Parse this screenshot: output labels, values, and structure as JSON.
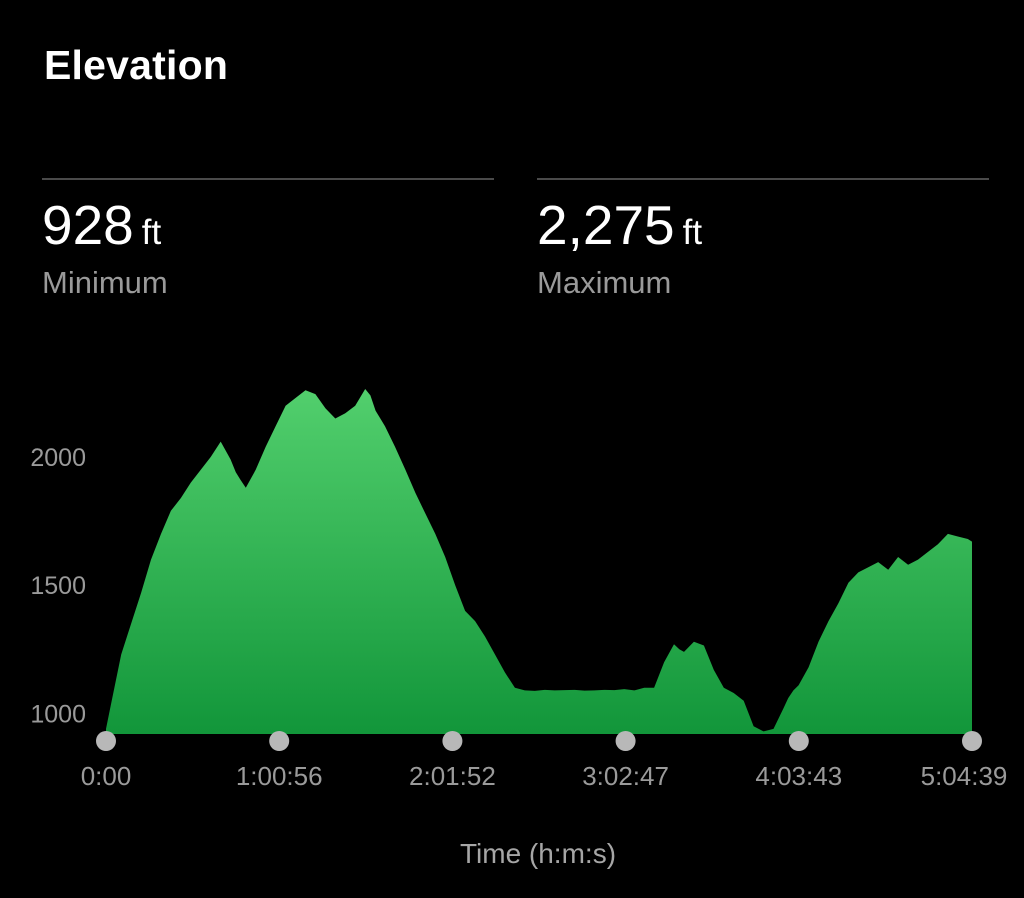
{
  "header": {
    "title": "Elevation"
  },
  "stats": [
    {
      "value": "928",
      "unit": "ft",
      "label": "Minimum"
    },
    {
      "value": "2,275",
      "unit": "ft",
      "label": "Maximum"
    }
  ],
  "chart_data": {
    "type": "area",
    "title": "Elevation",
    "xlabel": "Time (h:m:s)",
    "ylabel": "",
    "x_unit": "seconds",
    "xlim": [
      0,
      18279
    ],
    "ylim": [
      920,
      2300
    ],
    "x_ticks": [
      {
        "value": 0,
        "label": "0:00"
      },
      {
        "value": 3656,
        "label": "1:00:56"
      },
      {
        "value": 7312,
        "label": "2:01:52"
      },
      {
        "value": 10967,
        "label": "3:02:47"
      },
      {
        "value": 14623,
        "label": "4:03:43"
      },
      {
        "value": 18279,
        "label": "5:04:39"
      }
    ],
    "y_ticks": [
      {
        "value": 1000,
        "label": "1000"
      },
      {
        "value": 1500,
        "label": "1500"
      },
      {
        "value": 2000,
        "label": "2000"
      }
    ],
    "grid": false,
    "legend": "none",
    "colors": {
      "fill_top": "#52cf6d",
      "fill_bottom": "#12963a",
      "tick_dot": "#b8b8b8"
    },
    "series": [
      {
        "x": [
          0,
          110,
          320,
          530,
          740,
          950,
          1160,
          1370,
          1580,
          1790,
          2000,
          2210,
          2420,
          2630,
          2740,
          2840,
          2950,
          3160,
          3370,
          3580,
          3790,
          4000,
          4210,
          4420,
          4630,
          4840,
          5050,
          5260,
          5470,
          5580,
          5690,
          5890,
          6100,
          6320,
          6530,
          6740,
          6950,
          7160,
          7370,
          7580,
          7790,
          8000,
          8210,
          8420,
          8630,
          8840,
          9050,
          9260,
          9470,
          9680,
          9890,
          10100,
          10310,
          10520,
          10730,
          10940,
          11150,
          11360,
          11570,
          11780,
          11990,
          12100,
          12200,
          12410,
          12620,
          12830,
          13040,
          13250,
          13460,
          13670,
          13880,
          14090,
          14300,
          14400,
          14510,
          14620,
          14830,
          15040,
          15250,
          15460,
          15670,
          15880,
          16090,
          16300,
          16510,
          16720,
          16930,
          17140,
          17350,
          17560,
          17770,
          17980,
          18190,
          18279
        ],
        "y": [
          940,
          1040,
          1230,
          1350,
          1470,
          1600,
          1700,
          1790,
          1840,
          1900,
          1950,
          2000,
          2060,
          1990,
          1940,
          1910,
          1880,
          1950,
          2040,
          2120,
          2200,
          2230,
          2260,
          2245,
          2190,
          2150,
          2170,
          2200,
          2265,
          2240,
          2180,
          2120,
          2040,
          1950,
          1860,
          1780,
          1700,
          1610,
          1500,
          1400,
          1360,
          1300,
          1230,
          1160,
          1100,
          1090,
          1088,
          1092,
          1090,
          1091,
          1092,
          1089,
          1090,
          1092,
          1091,
          1095,
          1090,
          1100,
          1100,
          1200,
          1270,
          1250,
          1240,
          1280,
          1265,
          1170,
          1100,
          1080,
          1050,
          950,
          930,
          940,
          1020,
          1060,
          1090,
          1110,
          1180,
          1280,
          1360,
          1430,
          1510,
          1550,
          1570,
          1590,
          1560,
          1610,
          1580,
          1600,
          1630,
          1660,
          1700,
          1690,
          1680,
          1670
        ]
      }
    ]
  }
}
